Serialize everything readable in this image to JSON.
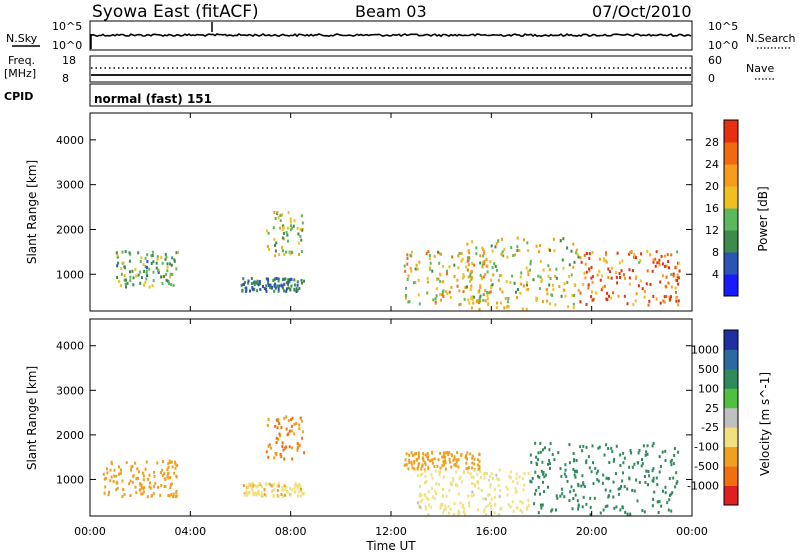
{
  "header": {
    "station": "Syowa East (fitACF)",
    "beam": "Beam 03",
    "date": "07/Oct/2010"
  },
  "noise_panel": {
    "left_label": "N.Sky",
    "left_ticks": [
      "10^5",
      "10^0"
    ],
    "right_label": "N.Search",
    "right_ticks": [
      "10^5",
      "10^0"
    ]
  },
  "freq_panel": {
    "left_label": "Freq.",
    "left_unit": "[MHz]",
    "left_ticks": [
      "18",
      "8"
    ],
    "right_label": "Nave",
    "right_ticks": [
      "60",
      "0"
    ]
  },
  "cpid_panel": {
    "label": "CPID",
    "mode": "normal (fast) 151"
  },
  "colors": {
    "power_scale": [
      "#1a1aff",
      "#2a55b5",
      "#3d8c4c",
      "#5cb85c",
      "#f0c020",
      "#f59c1a",
      "#f06a10",
      "#e63010"
    ],
    "velocity_scale": [
      "#2030a0",
      "#2a6aa0",
      "#2e8a58",
      "#50c040",
      "#c0c0c0",
      "#f0e080",
      "#f0a020",
      "#f07010",
      "#e02020"
    ]
  },
  "chart_data": [
    {
      "type": "heatmap",
      "title": "",
      "xlabel": "",
      "ylabel": "Slant Range [km]",
      "xlim": [
        "00:00",
        "24:00"
      ],
      "ylim": [
        180,
        4600
      ],
      "x_ticks": [
        "00:00",
        "04:00",
        "08:00",
        "12:00",
        "16:00",
        "20:00",
        "00:00"
      ],
      "y_ticks": [
        1000,
        2000,
        3000,
        4000
      ],
      "colorbar": {
        "label": "Power [dB]",
        "ticks": [
          4,
          8,
          12,
          16,
          20,
          24,
          28
        ],
        "range": [
          0,
          30
        ]
      },
      "regions": [
        {
          "t_start": 1.0,
          "t_end": 3.5,
          "range_km": [
            700,
            1500
          ],
          "value": 12
        },
        {
          "t_start": 6.0,
          "t_end": 8.5,
          "range_km": [
            600,
            900
          ],
          "value": 8
        },
        {
          "t_start": 7.0,
          "t_end": 8.5,
          "range_km": [
            1400,
            2400
          ],
          "value": 14
        },
        {
          "t_start": 12.5,
          "t_end": 16.0,
          "range_km": [
            300,
            1500
          ],
          "value": 18
        },
        {
          "t_start": 15.0,
          "t_end": 19.5,
          "range_km": [
            200,
            1800
          ],
          "value": 16
        },
        {
          "t_start": 19.5,
          "t_end": 23.5,
          "range_km": [
            300,
            1500
          ],
          "value": 24
        }
      ]
    },
    {
      "type": "heatmap",
      "title": "",
      "xlabel": "Time UT",
      "ylabel": "Slant Range [km]",
      "xlim": [
        "00:00",
        "24:00"
      ],
      "ylim": [
        180,
        4600
      ],
      "x_ticks": [
        "00:00",
        "04:00",
        "08:00",
        "12:00",
        "16:00",
        "20:00",
        "00:00"
      ],
      "y_ticks": [
        1000,
        2000,
        3000,
        4000
      ],
      "colorbar": {
        "label": "Velocity [m s^-1]",
        "ticks": [
          1000,
          500,
          100,
          25,
          -25,
          -100,
          -500,
          -1000
        ]
      },
      "regions": [
        {
          "t_start": 0.5,
          "t_end": 3.5,
          "range_km": [
            600,
            1400
          ],
          "value": -300
        },
        {
          "t_start": 6.0,
          "t_end": 8.5,
          "range_km": [
            600,
            900
          ],
          "value": -80
        },
        {
          "t_start": 7.0,
          "t_end": 8.5,
          "range_km": [
            1400,
            2400
          ],
          "value": -500
        },
        {
          "t_start": 12.5,
          "t_end": 15.5,
          "range_km": [
            1200,
            1600
          ],
          "value": -300
        },
        {
          "t_start": 13.0,
          "t_end": 17.5,
          "range_km": [
            200,
            1200
          ],
          "value": -40
        },
        {
          "t_start": 17.5,
          "t_end": 23.5,
          "range_km": [
            200,
            1800
          ],
          "value": 200
        }
      ]
    }
  ]
}
